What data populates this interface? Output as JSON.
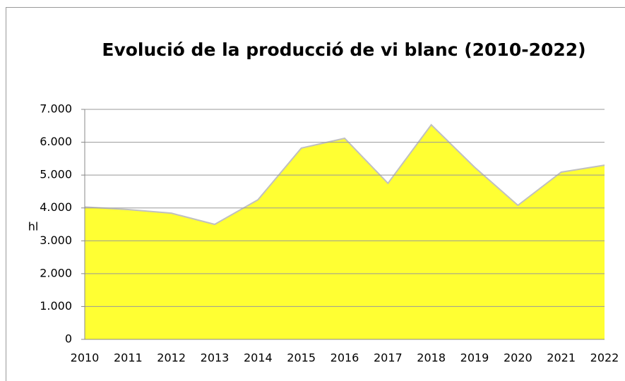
{
  "chart_data": {
    "type": "area",
    "title": "Evolució de la producció de vi blanc  (2010-2022)",
    "y_label": "hl",
    "categories": [
      "2010",
      "2011",
      "2012",
      "2013",
      "2014",
      "2015",
      "2016",
      "2017",
      "2018",
      "2019",
      "2020",
      "2021",
      "2022"
    ],
    "values": [
      4030,
      3950,
      3840,
      3500,
      4250,
      5820,
      6120,
      4750,
      6530,
      5240,
      4080,
      5090,
      5300
    ],
    "color": "#ffff33",
    "line_color": "#c0c0c0",
    "ylim": [
      0,
      7000
    ],
    "yticks": [
      0,
      {
        "value": 1000,
        "label": "1.000"
      },
      {
        "value": 2000,
        "label": "2.000"
      },
      {
        "value": 3000,
        "label": "3.000"
      },
      {
        "value": 4000,
        "label": "4.000"
      },
      {
        "value": 5000,
        "label": "5.000"
      },
      {
        "value": 6000,
        "label": "6.000"
      },
      {
        "value": 7000,
        "label": "7.000"
      }
    ],
    "grid": true
  }
}
